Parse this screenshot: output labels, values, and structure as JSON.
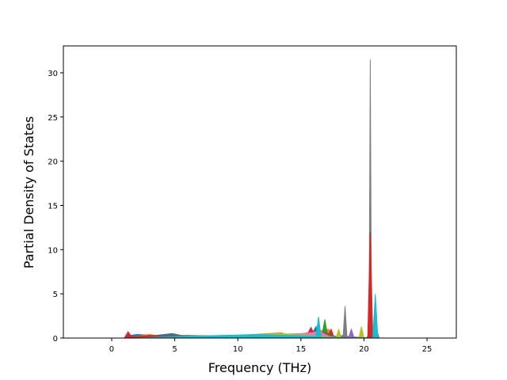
{
  "chart_data": {
    "type": "area",
    "x_label": "Frequency (THz)",
    "y_label": "Partial Density of States",
    "xlim": [
      -3.83,
      27.32
    ],
    "ylim": [
      0,
      33.04
    ],
    "xticks": [
      0,
      5,
      10,
      15,
      20,
      25
    ],
    "yticks": [
      0,
      5,
      10,
      15,
      20,
      25,
      30
    ],
    "grid": false,
    "series": [
      {
        "color": "#1f77b4",
        "x": [
          -2.5,
          1.0,
          1.5,
          2.0,
          3.5,
          4.8,
          5.5,
          6.5,
          10.5,
          12.5,
          15.0,
          16.0,
          16.2,
          16.4,
          17.5,
          25.9
        ],
        "values": [
          0,
          0,
          0.3,
          0.4,
          0.3,
          0.5,
          0.3,
          0.1,
          0.2,
          0.5,
          0.4,
          0.8,
          1.3,
          0.2,
          0,
          0
        ]
      },
      {
        "color": "#ff7f0e",
        "x": [
          -2.5,
          1.2,
          2.5,
          3.0,
          4.0,
          8.0,
          10.0,
          13.5,
          14.0,
          15.5,
          17.2,
          17.5,
          18.0,
          25.9
        ],
        "values": [
          0,
          0,
          0.3,
          0.4,
          0.2,
          0.1,
          0.3,
          0.6,
          0.2,
          0.5,
          1.0,
          0.3,
          0,
          0
        ]
      },
      {
        "color": "#2ca02c",
        "x": [
          -2.5,
          1.5,
          3.0,
          6.0,
          9.0,
          11.0,
          14.5,
          16.0,
          16.7,
          16.9,
          17.1,
          18.0,
          25.9
        ],
        "values": [
          0,
          0,
          0.2,
          0.3,
          0.2,
          0.3,
          0.4,
          0.5,
          0.6,
          2.1,
          0.4,
          0,
          0
        ]
      },
      {
        "color": "#7f7f7f",
        "x": [
          -2.5,
          4.0,
          8.0,
          12.0,
          18.0,
          18.35,
          18.5,
          18.65,
          20.2,
          20.4,
          20.5,
          20.6,
          20.8,
          25.9
        ],
        "values": [
          0,
          0,
          0.2,
          0.3,
          0.2,
          0.3,
          3.6,
          0.2,
          0,
          0.5,
          31.5,
          0.5,
          0,
          0
        ]
      },
      {
        "color": "#d62728",
        "x": [
          -2.5,
          1.0,
          1.3,
          1.6,
          3.0,
          5.0,
          12.0,
          15.5,
          15.8,
          16.1,
          17.2,
          17.4,
          17.6,
          20.3,
          20.5,
          20.7,
          25.9
        ],
        "values": [
          0,
          0,
          0.7,
          0.1,
          0.3,
          0.2,
          0.3,
          0.4,
          1.2,
          0.3,
          0.4,
          1.0,
          0.2,
          0,
          12,
          0,
          0
        ]
      },
      {
        "color": "#9467bd",
        "x": [
          -2.5,
          2.0,
          7.0,
          13.0,
          18.8,
          19.0,
          19.2,
          20.8,
          21.0,
          21.2,
          25.9
        ],
        "values": [
          0,
          0,
          0.2,
          0.3,
          0.1,
          1.0,
          0.1,
          0,
          1.0,
          0,
          0
        ]
      },
      {
        "color": "#8c564b",
        "x": [
          -2.5,
          2.0,
          4.5,
          9.0,
          14.0,
          17.0,
          18.0,
          25.9
        ],
        "values": [
          0,
          0,
          0.3,
          0.2,
          0.4,
          0.6,
          0,
          0
        ]
      },
      {
        "color": "#e377c2",
        "x": [
          -2.5,
          3.0,
          6.0,
          10.0,
          15.0,
          16.5,
          17.5,
          25.9
        ],
        "values": [
          0,
          0,
          0.2,
          0.3,
          0.5,
          0.7,
          0,
          0
        ]
      },
      {
        "color": "#bcbd22",
        "x": [
          -2.5,
          2.0,
          8.0,
          13.5,
          17.8,
          18.0,
          18.2,
          19.6,
          19.8,
          20.0,
          25.9
        ],
        "values": [
          0,
          0,
          0.2,
          0.5,
          0.1,
          1.0,
          0,
          0,
          1.3,
          0,
          0
        ]
      },
      {
        "color": "#17becf",
        "x": [
          -2.5,
          2.0,
          6.0,
          11.5,
          16.2,
          16.4,
          16.6,
          20.7,
          20.9,
          21.1,
          25.9
        ],
        "values": [
          0,
          0,
          0.2,
          0.4,
          0.2,
          2.4,
          0.1,
          0,
          5.0,
          0,
          0
        ]
      }
    ]
  }
}
